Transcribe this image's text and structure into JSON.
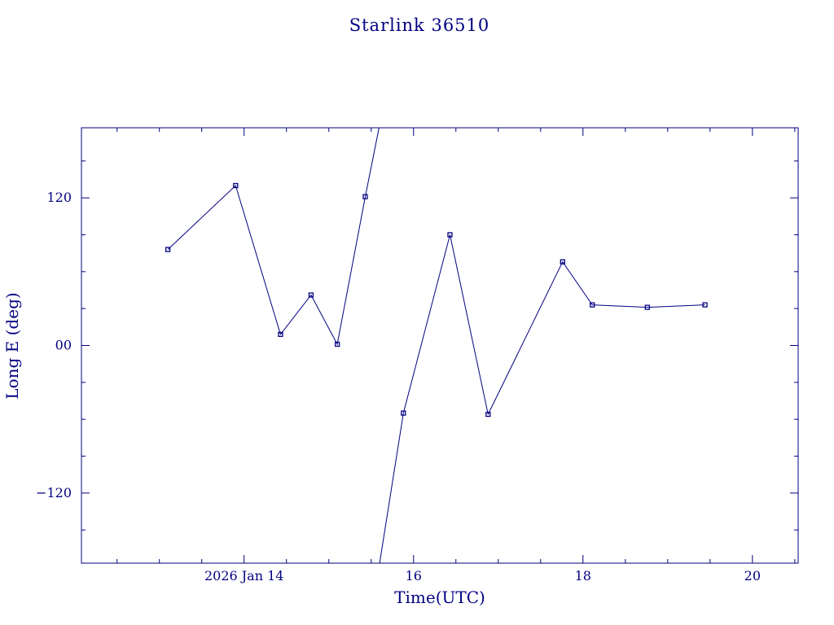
{
  "chart_data": {
    "type": "line",
    "title": "Starlink 36510",
    "xlabel": "Time(UTC)",
    "ylabel": "Long E (deg)",
    "xlim": [
      12.08,
      20.54
    ],
    "ylim": [
      -177,
      177
    ],
    "x_ticks": [
      {
        "value": 14,
        "label": "2026 Jan 14"
      },
      {
        "value": 16,
        "label": "16"
      },
      {
        "value": 18,
        "label": "18"
      },
      {
        "value": 20,
        "label": "20"
      }
    ],
    "x_minor_step": 0.5,
    "y_ticks": [
      {
        "value": 120,
        "label": "120"
      },
      {
        "value": 0,
        "label": "00"
      },
      {
        "value": -120,
        "label": "−120"
      }
    ],
    "y_minor_step": 30,
    "line_color": "#000080",
    "text_color": "#000080",
    "marker": "open-square",
    "markers": [
      [
        13.1,
        78
      ],
      [
        13.9,
        130
      ],
      [
        14.43,
        9
      ],
      [
        14.79,
        41
      ],
      [
        15.1,
        1
      ],
      [
        15.43,
        121
      ],
      [
        15.88,
        -55
      ],
      [
        16.43,
        90
      ],
      [
        16.88,
        -56
      ],
      [
        17.76,
        68
      ],
      [
        18.11,
        33
      ],
      [
        18.76,
        31
      ],
      [
        19.44,
        33
      ]
    ],
    "segments": [
      [
        [
          13.1,
          78
        ],
        [
          13.9,
          130
        ],
        [
          14.43,
          9
        ],
        [
          14.79,
          41
        ],
        [
          15.1,
          1
        ],
        [
          15.43,
          121
        ],
        [
          15.63,
          190
        ]
      ],
      [
        [
          15.57,
          -190
        ],
        [
          15.88,
          -55
        ],
        [
          16.43,
          90
        ],
        [
          16.88,
          -56
        ],
        [
          17.76,
          68
        ],
        [
          18.11,
          33
        ],
        [
          18.76,
          31
        ],
        [
          19.44,
          33
        ]
      ]
    ],
    "grid": false,
    "legend": "none"
  }
}
